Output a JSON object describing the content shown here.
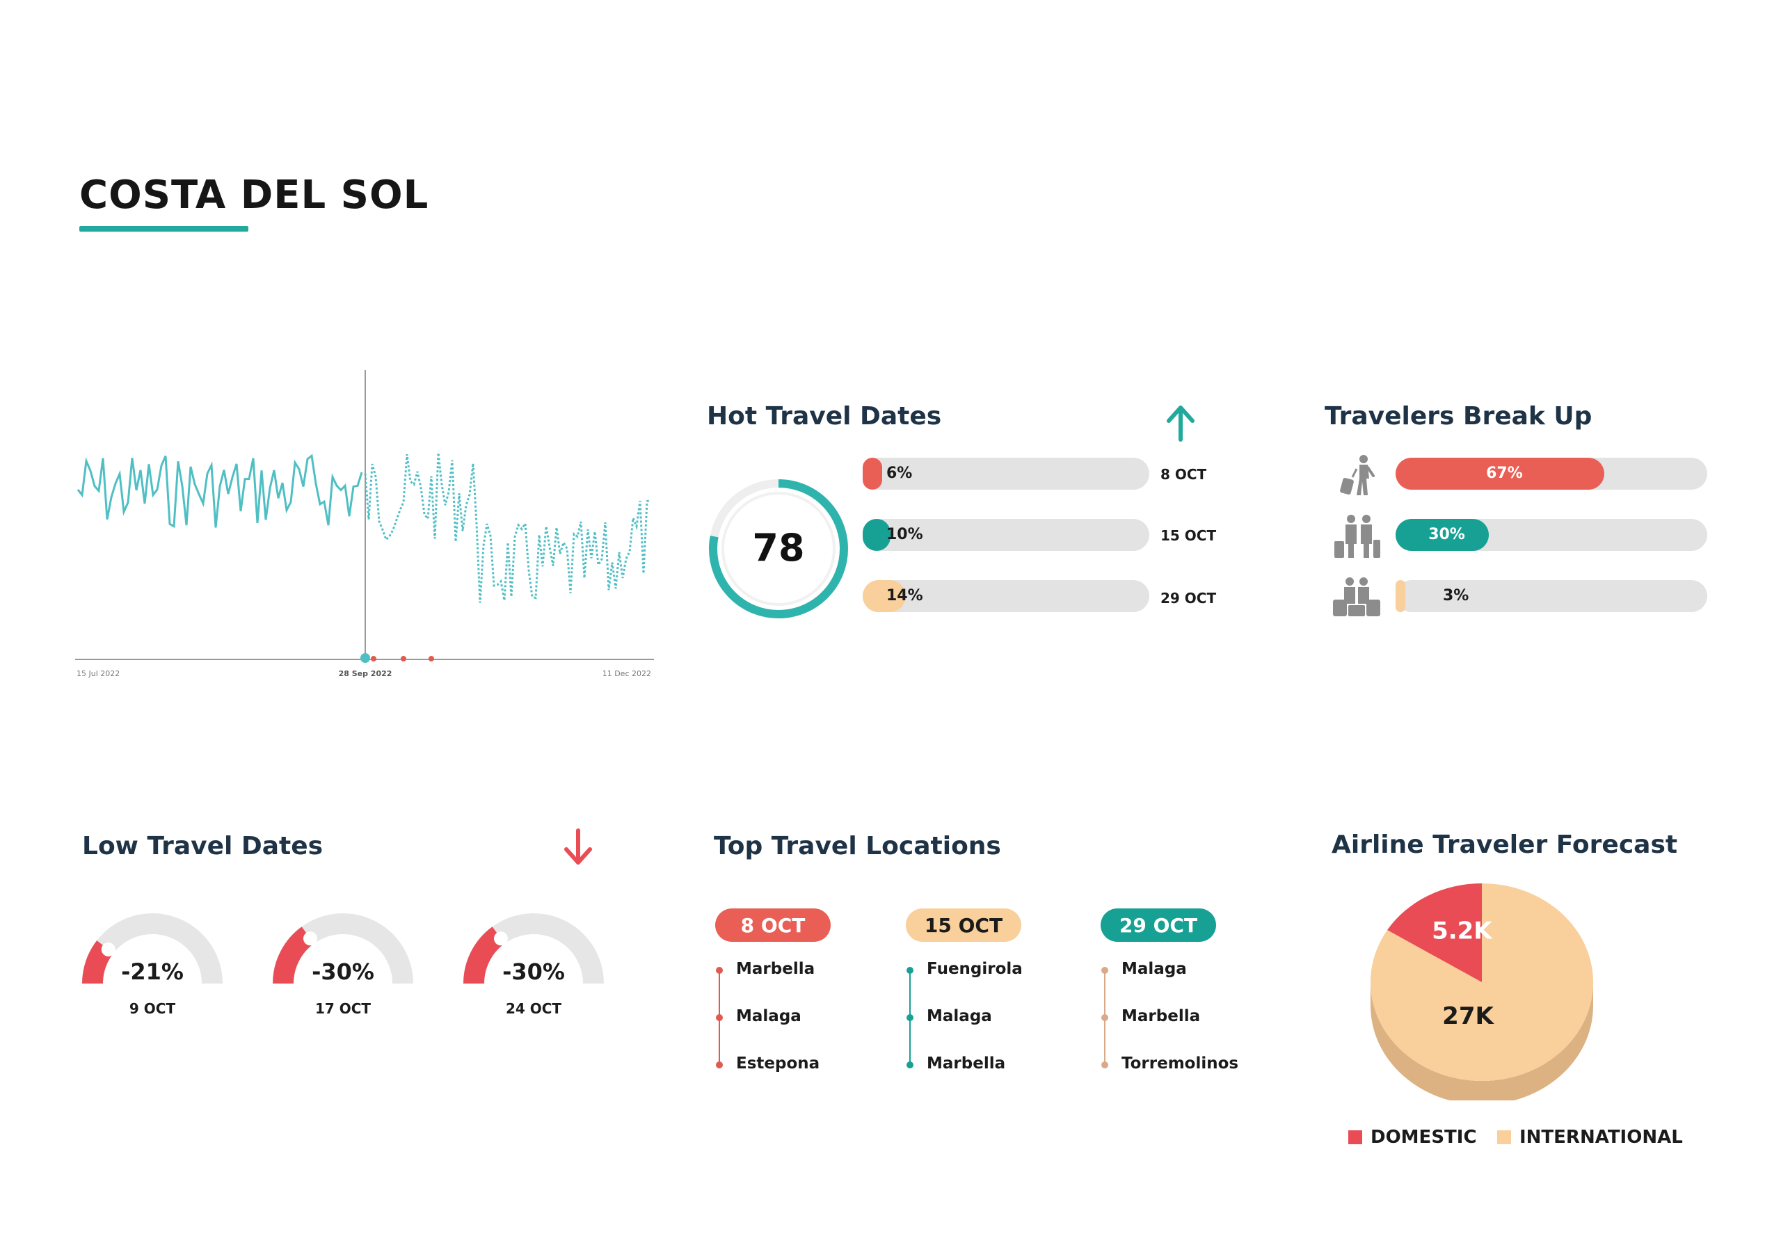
{
  "page": {
    "title": "COSTA DEL SOL",
    "accent_color": "#22a99c",
    "red_color": "#ea5f55",
    "peach_color": "#f9cf9b"
  },
  "trend_chart": {
    "x_labels": [
      "15 Jul 2022",
      "28 Sep 2022",
      "11 Dec 2022"
    ],
    "line_color": "#4fbfc4"
  },
  "hot_travel": {
    "title": "Hot Travel Dates",
    "arrow_icon": "arrow-up-icon",
    "score": "78",
    "score_fraction": 0.78,
    "bars": [
      {
        "pct_label": "6%",
        "value": 0.06,
        "date": "8 OCT",
        "color": "#ea5f55"
      },
      {
        "pct_label": "10%",
        "value": 0.1,
        "date": "15 OCT",
        "color": "#16a194"
      },
      {
        "pct_label": "14%",
        "value": 0.14,
        "date": "29 OCT",
        "color": "#f9cf9b"
      }
    ]
  },
  "travelers": {
    "title": "Travelers Break Up",
    "rows": [
      {
        "icon": "solo-traveler-icon",
        "pct_label": "67%",
        "value": 0.67,
        "color": "#ea5f55"
      },
      {
        "icon": "couple-traveler-icon",
        "pct_label": "30%",
        "value": 0.3,
        "color": "#16a194"
      },
      {
        "icon": "family-traveler-icon",
        "pct_label": "3%",
        "value": 0.03,
        "color": "#f9cf9b"
      }
    ]
  },
  "low_travel": {
    "title": "Low Travel Dates",
    "arrow_icon": "arrow-down-icon",
    "gauges": [
      {
        "label": "-21%",
        "value": 0.21,
        "date": "9 OCT"
      },
      {
        "label": "-30%",
        "value": 0.3,
        "date": "17 OCT"
      },
      {
        "label": "-30%",
        "value": 0.3,
        "date": "24 OCT"
      }
    ]
  },
  "top_locations": {
    "title": "Top Travel Locations",
    "columns": [
      {
        "date": "8 OCT",
        "color": "#ea5f55",
        "text_color": "#ffffff",
        "dot_color": "#e05a50",
        "places": [
          "Marbella",
          "Malaga",
          "Estepona"
        ]
      },
      {
        "date": "15 OCT",
        "color": "#f9cf9b",
        "text_color": "#1b1b1b",
        "dot_color": "#16a194",
        "places": [
          "Fuengirola",
          "Malaga",
          "Marbella"
        ]
      },
      {
        "date": "29 OCT",
        "color": "#16a194",
        "text_color": "#ffffff",
        "dot_color": "#d9a98a",
        "places": [
          "Malaga",
          "Marbella",
          "Torremolinos"
        ]
      }
    ]
  },
  "forecast": {
    "title": "Airline Traveler Forecast",
    "chart_data": {
      "type": "pie",
      "slices": [
        {
          "name": "DOMESTIC",
          "label": "5.2K",
          "value": 5.2,
          "color": "#e94c55"
        },
        {
          "name": "INTERNATIONAL",
          "label": "27K",
          "value": 27,
          "color": "#f9cf9b"
        }
      ]
    },
    "legend": [
      "DOMESTIC",
      "INTERNATIONAL"
    ]
  }
}
